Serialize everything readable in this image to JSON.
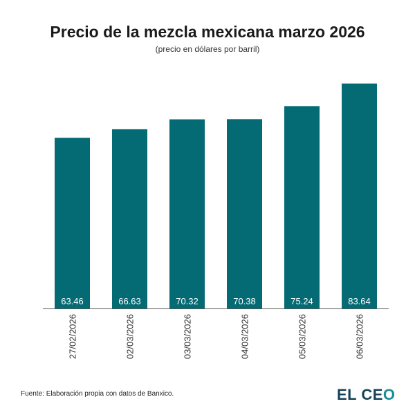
{
  "chart_data": {
    "type": "bar",
    "title": "Precio de la mezcla mexicana marzo 2026",
    "subtitle": "(precio en dólares por barril)",
    "categories": [
      "27/02/2026",
      "02/03/2026",
      "03/03/2026",
      "04/03/2026",
      "05/03/2026",
      "06/03/2026"
    ],
    "values": [
      63.46,
      66.63,
      70.32,
      70.38,
      75.24,
      83.64
    ],
    "data_labels": [
      "63.46",
      "66.63",
      "70.32",
      "70.38",
      "75.24",
      "83.64"
    ],
    "xlabel": "",
    "ylabel": "",
    "ylim": [
      0,
      90
    ],
    "grid": false,
    "bar_color": "#046a73"
  },
  "footer": {
    "source": "Fuente: Elaboración propia con datos de Banxico."
  },
  "logo": {
    "text_main": "EL CE",
    "text_accent": "O"
  }
}
